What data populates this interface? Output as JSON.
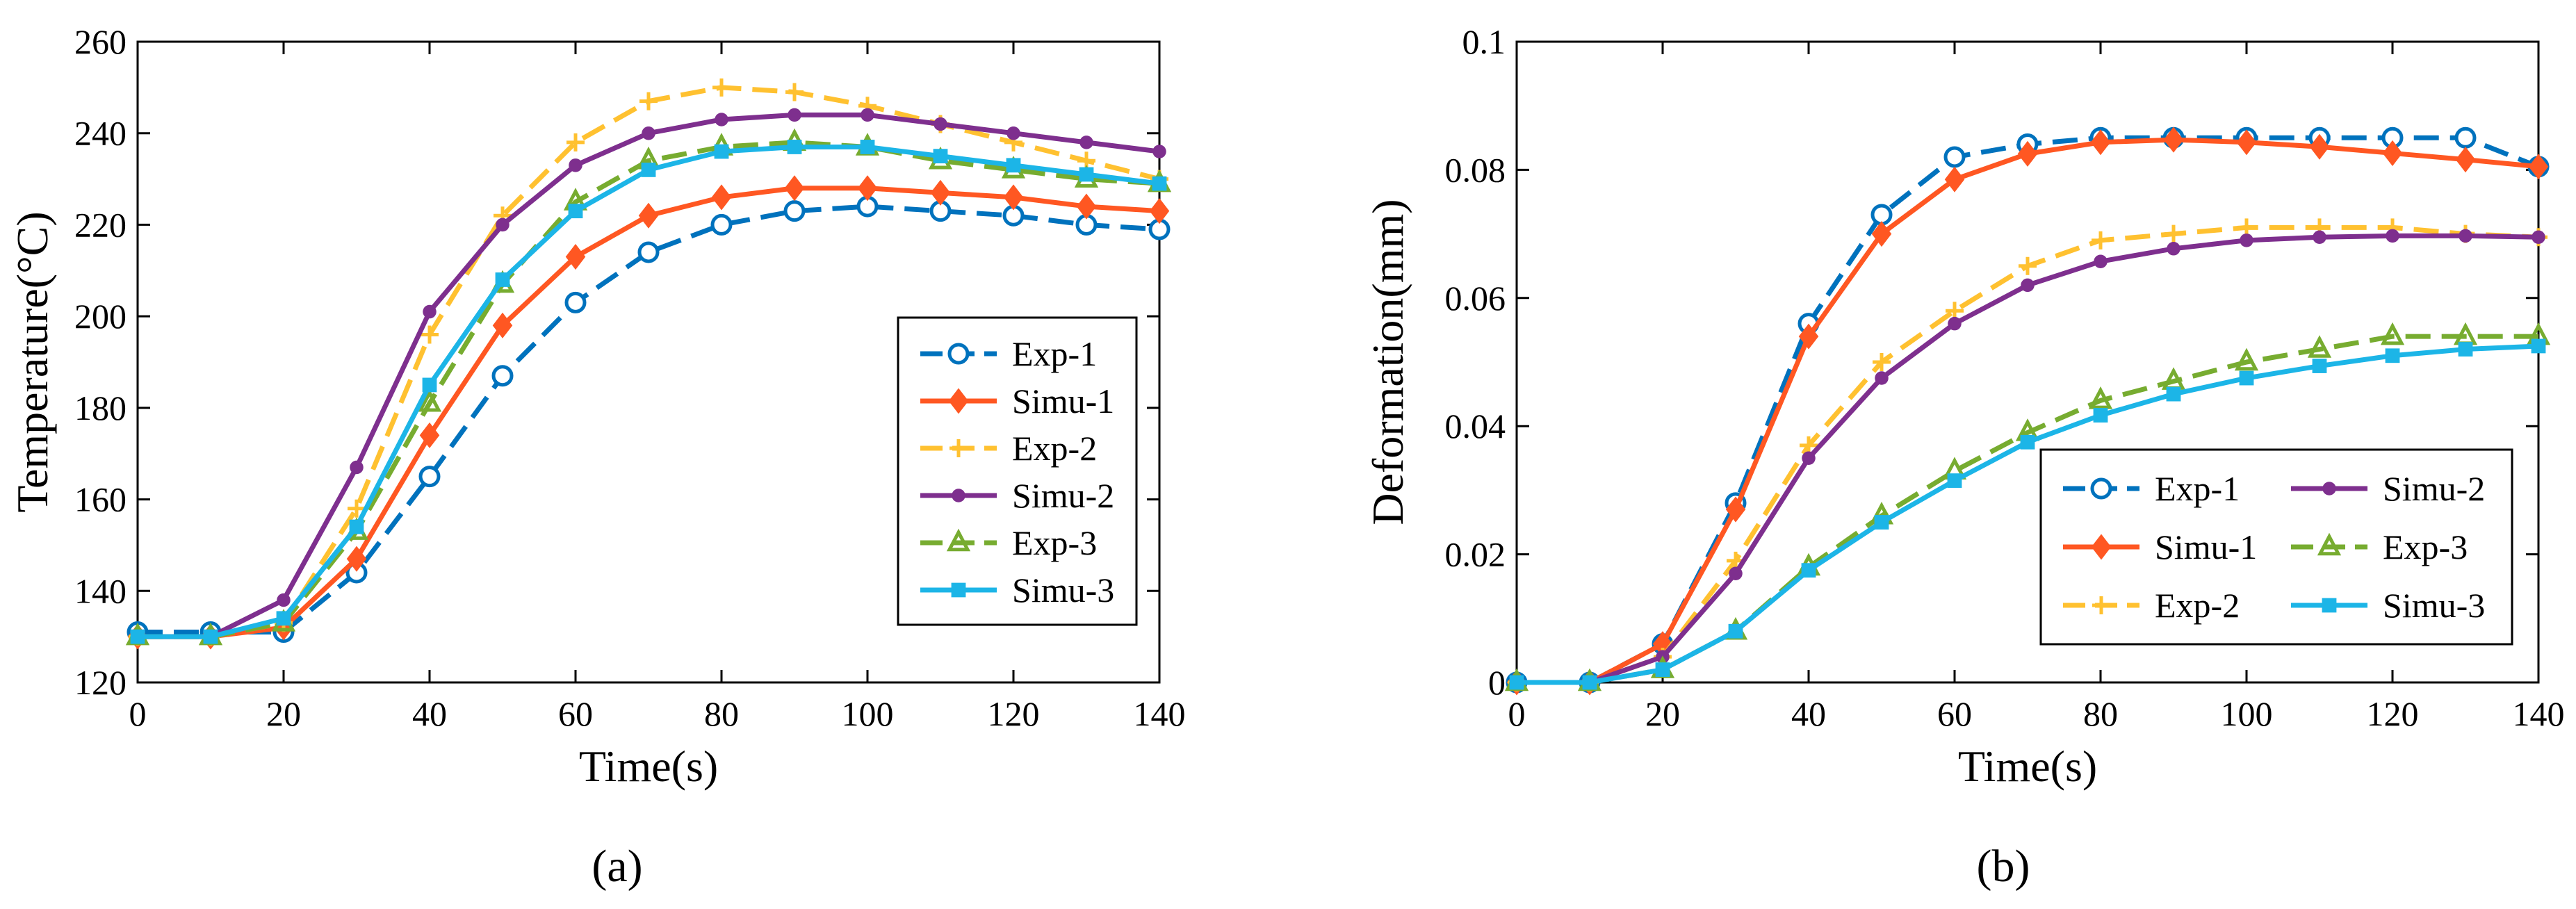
{
  "chart_data": [
    {
      "type": "line",
      "panel": "a",
      "caption": "(a)",
      "xlabel": "Time(s)",
      "ylabel": "Temperature(°C)",
      "xlim": [
        0,
        140
      ],
      "ylim": [
        120,
        260
      ],
      "xticks": [
        "0",
        "20",
        "40",
        "60",
        "80",
        "100",
        "120",
        "140"
      ],
      "yticks": [
        "120",
        "140",
        "160",
        "180",
        "200",
        "220",
        "240",
        "260"
      ],
      "legend_position": "lower-right",
      "x": [
        0,
        10,
        20,
        30,
        40,
        50,
        60,
        70,
        80,
        90,
        100,
        110,
        120,
        130,
        140
      ],
      "series": [
        {
          "name": "Exp-1",
          "color": "#0072BD",
          "dash": true,
          "marker": "circle",
          "values": [
            131,
            131,
            131,
            144,
            165,
            187,
            203,
            214,
            220,
            223,
            224,
            223,
            222,
            220,
            219
          ]
        },
        {
          "name": "Simu-1",
          "color": "#FF5722",
          "dash": false,
          "marker": "diamond",
          "values": [
            130,
            130,
            132,
            147,
            174,
            198,
            213,
            222,
            226,
            228,
            228,
            227,
            226,
            224,
            223
          ]
        },
        {
          "name": "Exp-2",
          "color": "#FFC130",
          "dash": true,
          "marker": "plus",
          "values": [
            130,
            130,
            133,
            158,
            196,
            222,
            238,
            247,
            250,
            249,
            246,
            242,
            238,
            234,
            230
          ]
        },
        {
          "name": "Simu-2",
          "color": "#7E2F8E",
          "dash": false,
          "marker": "dot",
          "values": [
            130,
            130,
            138,
            167,
            201,
            220,
            233,
            240,
            243,
            244,
            244,
            242,
            240,
            238,
            236
          ]
        },
        {
          "name": "Exp-3",
          "color": "#77AC30",
          "dash": true,
          "marker": "triangle",
          "values": [
            130,
            130,
            133,
            153,
            181,
            207,
            225,
            234,
            237,
            238,
            237,
            234,
            232,
            230,
            229
          ]
        },
        {
          "name": "Simu-3",
          "color": "#1CB5E7",
          "dash": false,
          "marker": "square",
          "values": [
            130,
            130,
            134,
            154,
            185,
            208,
            223,
            232,
            236,
            237,
            237,
            235,
            233,
            231,
            229
          ]
        }
      ]
    },
    {
      "type": "line",
      "panel": "b",
      "caption": "(b)",
      "xlabel": "Time(s)",
      "ylabel": "Deformation(mm)",
      "xlim": [
        0,
        140
      ],
      "ylim": [
        0,
        0.1
      ],
      "xticks": [
        "0",
        "20",
        "40",
        "60",
        "80",
        "100",
        "120",
        "140"
      ],
      "yticks": [
        "0",
        "0.02",
        "0.04",
        "0.06",
        "0.08",
        "0.1"
      ],
      "legend_position": "lower-right",
      "legend_columns": 2,
      "x": [
        0,
        10,
        20,
        30,
        40,
        50,
        60,
        70,
        80,
        90,
        100,
        110,
        120,
        130,
        140
      ],
      "series": [
        {
          "name": "Exp-1",
          "color": "#0072BD",
          "dash": true,
          "marker": "circle",
          "values": [
            0,
            0,
            0.006,
            0.028,
            0.056,
            0.073,
            0.082,
            0.084,
            0.085,
            0.085,
            0.085,
            0.085,
            0.085,
            0.085,
            0.0805
          ]
        },
        {
          "name": "Simu-1",
          "color": "#FF5722",
          "dash": false,
          "marker": "diamond",
          "values": [
            0,
            0,
            0.006,
            0.027,
            0.054,
            0.07,
            0.0785,
            0.0825,
            0.0843,
            0.0847,
            0.0843,
            0.0836,
            0.0826,
            0.0816,
            0.0805
          ]
        },
        {
          "name": "Exp-2",
          "color": "#FFC130",
          "dash": true,
          "marker": "plus",
          "values": [
            0,
            0,
            0.004,
            0.019,
            0.037,
            0.05,
            0.058,
            0.065,
            0.069,
            0.07,
            0.071,
            0.071,
            0.071,
            0.07,
            0.0695
          ]
        },
        {
          "name": "Simu-2",
          "color": "#7E2F8E",
          "dash": false,
          "marker": "dot",
          "values": [
            0,
            0,
            0.004,
            0.017,
            0.035,
            0.0475,
            0.056,
            0.062,
            0.0657,
            0.0677,
            0.069,
            0.0695,
            0.0697,
            0.0697,
            0.0695
          ]
        },
        {
          "name": "Exp-3",
          "color": "#77AC30",
          "dash": true,
          "marker": "triangle",
          "values": [
            0,
            0,
            0.002,
            0.008,
            0.018,
            0.026,
            0.033,
            0.039,
            0.044,
            0.047,
            0.05,
            0.052,
            0.054,
            0.054,
            0.054
          ]
        },
        {
          "name": "Simu-3",
          "color": "#1CB5E7",
          "dash": false,
          "marker": "square",
          "values": [
            0,
            0,
            0.002,
            0.008,
            0.0175,
            0.025,
            0.0315,
            0.0375,
            0.0417,
            0.045,
            0.0475,
            0.0494,
            0.051,
            0.052,
            0.0525
          ]
        }
      ]
    }
  ]
}
